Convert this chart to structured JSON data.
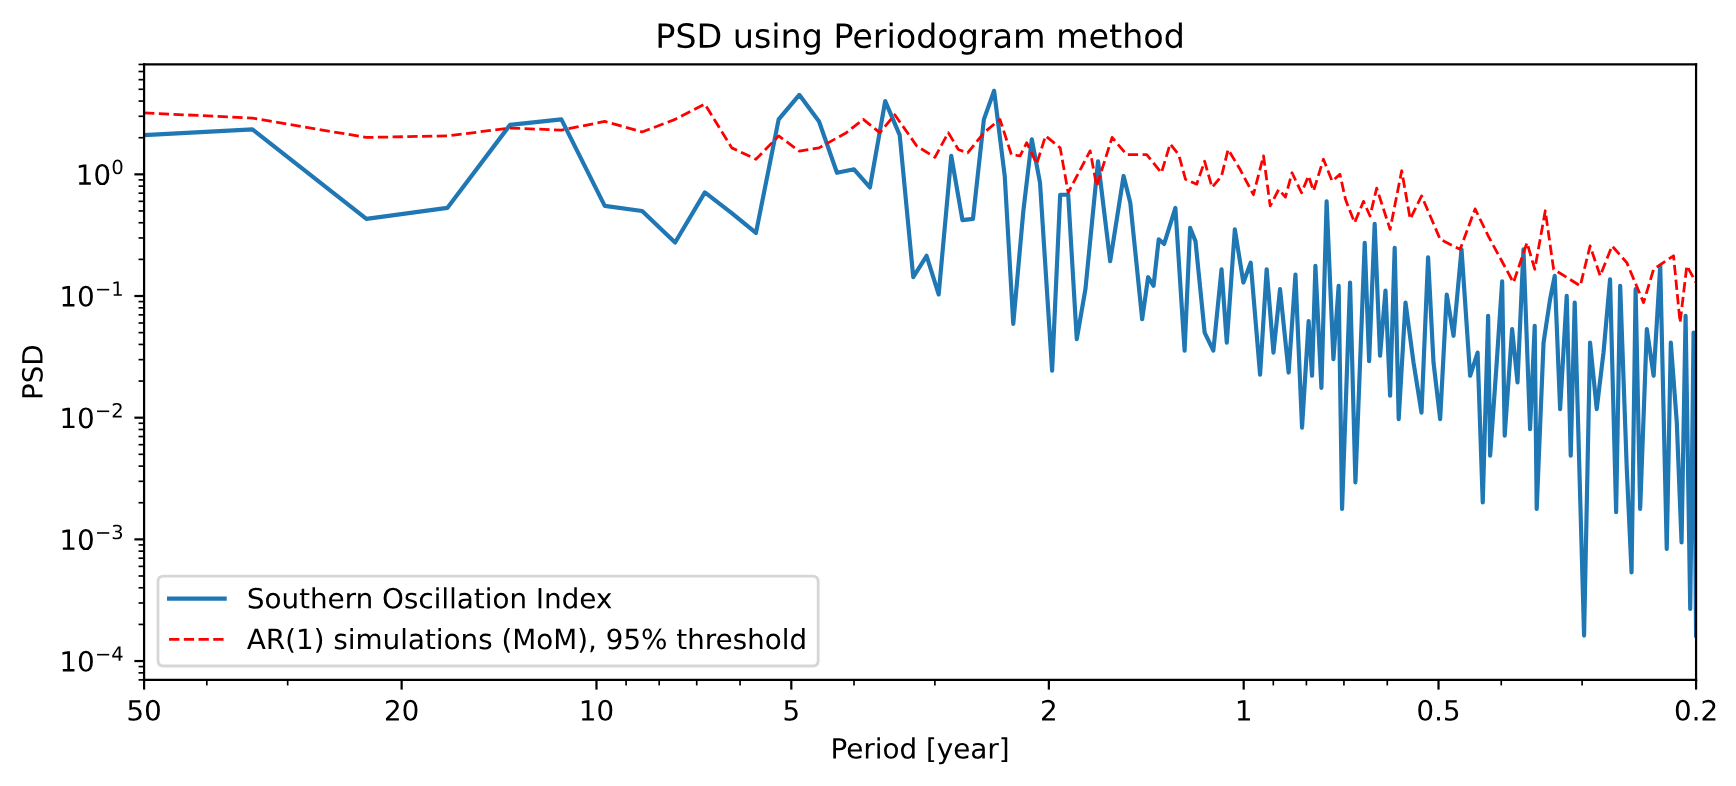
{
  "chart_data": {
    "type": "line",
    "title": "PSD using Periodogram method",
    "xlabel": "Period [year]",
    "ylabel": "PSD",
    "log": "xy",
    "xlim": [
      50,
      0.2
    ],
    "ylim": [
      7e-05,
      8
    ],
    "xticks": [
      50,
      20,
      10,
      5,
      2,
      1,
      0.5,
      0.2
    ],
    "yticks": [
      {
        "value": 0.0001,
        "label": "10$^{−4}$"
      },
      {
        "value": 0.001,
        "label": "10$^{−3}$"
      },
      {
        "value": 0.01,
        "label": "10$^{−2}$"
      },
      {
        "value": 0.1,
        "label": "10$^{−1}$"
      },
      {
        "value": 1,
        "label": "10$^{0}$"
      }
    ],
    "grid": false,
    "legend": "bottom left",
    "series": [
      {
        "name": "Southern Oscillation Index",
        "color": "#1f77b4",
        "line_style": "solid",
        "x": [
          50,
          34,
          22.67,
          17,
          13.6,
          11.33,
          9.71,
          8.5,
          7.56,
          6.8,
          6.18,
          5.67,
          5.23,
          4.86,
          4.53,
          4.25,
          4.0,
          3.78,
          3.58,
          3.4,
          3.24,
          3.09,
          2.96,
          2.83,
          2.72,
          2.62,
          2.52,
          2.43,
          2.34,
          2.27,
          2.19,
          2.125,
          2.064,
          1.977,
          1.921,
          1.867,
          1.811,
          1.756,
          1.679,
          1.608,
          1.533,
          1.497,
          1.435,
          1.405,
          1.378,
          1.353,
          1.327,
          1.275,
          1.234,
          1.21,
          1.187,
          1.149,
          1.114,
          1.082,
          1.062,
          1.032,
          1.001,
          0.9754,
          0.9434,
          0.9215,
          0.8995,
          0.8787,
          0.8522,
          0.8318,
          0.8125,
          0.7937,
          0.7841,
          0.7748,
          0.7584,
          0.7445,
          0.7267,
          0.7133,
          0.7047,
          0.6849,
          0.672,
          0.6501,
          0.64,
          0.6275,
          0.6156,
          0.6038,
          0.594,
          0.5844,
          0.5761,
          0.5623,
          0.5465,
          0.5312,
          0.5189,
          0.509,
          0.4971,
          0.4856,
          0.474,
          0.4607,
          0.4468,
          0.4351,
          0.4272,
          0.4191,
          0.4161,
          0.4065,
          0.3987,
          0.3951,
          0.3848,
          0.3775,
          0.3696,
          0.361,
          0.3551,
          0.3526,
          0.3441,
          0.3362,
          0.3307,
          0.3244,
          0.3169,
          0.3124,
          0.308,
          0.2979,
          0.2916,
          0.2848,
          0.278,
          0.2716,
          0.2658,
          0.262,
          0.2559,
          0.2516,
          0.248,
          0.244,
          0.2383,
          0.2326,
          0.2272,
          0.222,
          0.2188,
          0.2142,
          0.2106,
          0.2076,
          0.2042,
          0.2018,
          0.2
        ],
        "values": [
          2.1,
          2.34,
          0.43,
          0.53,
          2.55,
          2.83,
          0.55,
          0.5,
          0.275,
          0.71,
          0.48,
          0.33,
          2.83,
          4.5,
          2.72,
          1.03,
          1.1,
          0.78,
          4.0,
          2.1,
          0.143,
          0.214,
          0.103,
          1.42,
          0.42,
          0.43,
          2.83,
          4.86,
          0.97,
          0.059,
          0.5,
          1.94,
          0.853,
          0.0244,
          0.68,
          0.68,
          0.0442,
          0.1138,
          1.28,
          0.193,
          0.97,
          0.585,
          0.0645,
          0.1427,
          0.1213,
          0.292,
          0.268,
          0.53,
          0.0356,
          0.363,
          0.282,
          0.0501,
          0.0356,
          0.166,
          0.0414,
          0.353,
          0.129,
          0.188,
          0.0226,
          0.166,
          0.0343,
          0.1138,
          0.0235,
          0.15,
          0.00828,
          0.0621,
          0.0221,
          0.177,
          0.0176,
          0.6,
          0.0303,
          0.1213,
          0.00178,
          0.129,
          0.00294,
          0.274,
          0.0292,
          0.392,
          0.0323,
          0.111,
          0.0152,
          0.249,
          0.00974,
          0.0883,
          0.0284,
          0.011,
          0.208,
          0.0284,
          0.00974,
          0.1027,
          0.0471,
          0.242,
          0.0221,
          0.0343,
          0.00201,
          0.0688,
          0.00488,
          0.0284,
          0.132,
          0.00711,
          0.0534,
          0.0195,
          0.242,
          0.00806,
          0.0569,
          0.00178,
          0.0414,
          0.0941,
          0.1465,
          0.01177,
          0.1004,
          0.00488,
          0.0883,
          0.000162,
          0.0414,
          0.01177,
          0.0343,
          0.1374,
          0.00167,
          0.1213,
          0.00379,
          0.000536,
          0.1138,
          0.00178,
          0.0534,
          0.0221,
          0.177,
          0.000834,
          0.0414,
          0.00914,
          0.000945,
          0.0688,
          0.000268,
          0.0501,
          0.000162
        ]
      },
      {
        "name": "AR(1) simulations (MoM), 95% threshold",
        "color": "#ff0000",
        "line_style": "dashed",
        "x": [
          50,
          34,
          22.7,
          17,
          13.6,
          11.33,
          9.71,
          8.5,
          7.56,
          6.8,
          6.18,
          5.67,
          5.23,
          4.86,
          4.53,
          4.11,
          3.87,
          3.65,
          3.46,
          3.2,
          3.0,
          2.86,
          2.76,
          2.67,
          2.52,
          2.38,
          2.285,
          2.215,
          2.164,
          2.088,
          2.024,
          1.921,
          1.867,
          1.727,
          1.687,
          1.597,
          1.516,
          1.412,
          1.34,
          1.299,
          1.26,
          1.23,
          1.182,
          1.149,
          1.119,
          1.082,
          1.057,
          1.013,
          0.966,
          0.932,
          0.91,
          0.883,
          0.862,
          0.842,
          0.814,
          0.794,
          0.78,
          0.753,
          0.73,
          0.71,
          0.696,
          0.674,
          0.653,
          0.638,
          0.623,
          0.594,
          0.57,
          0.553,
          0.531,
          0.497,
          0.463,
          0.439,
          0.419,
          0.383,
          0.365,
          0.355,
          0.342,
          0.332,
          0.302,
          0.2916,
          0.2813,
          0.2697,
          0.2559,
          0.2411,
          0.2326,
          0.2167,
          0.2117,
          0.2067,
          0.2
        ],
        "values": [
          3.2,
          2.9,
          2.01,
          2.07,
          2.4,
          2.31,
          2.72,
          2.23,
          2.83,
          3.78,
          1.65,
          1.33,
          2.07,
          1.55,
          1.65,
          2.2,
          2.83,
          2.2,
          3.09,
          1.71,
          1.38,
          2.2,
          1.6,
          1.5,
          2.2,
          2.83,
          1.45,
          1.42,
          1.82,
          1.22,
          2.07,
          1.65,
          0.706,
          1.56,
          0.8,
          2.01,
          1.45,
          1.45,
          1.03,
          1.78,
          1.45,
          0.91,
          0.83,
          1.28,
          0.78,
          0.97,
          1.6,
          1.1,
          0.68,
          1.42,
          0.55,
          0.75,
          0.65,
          1.03,
          0.706,
          0.97,
          0.73,
          1.33,
          0.88,
          1.0,
          0.62,
          0.4,
          0.6,
          0.455,
          0.77,
          0.353,
          1.07,
          0.43,
          0.665,
          0.292,
          0.242,
          0.52,
          0.312,
          0.129,
          0.274,
          0.166,
          0.502,
          0.166,
          0.1213,
          0.258,
          0.1465,
          0.258,
          0.188,
          0.0883,
          0.166,
          0.214,
          0.0605,
          0.177,
          0.129
        ]
      }
    ]
  }
}
